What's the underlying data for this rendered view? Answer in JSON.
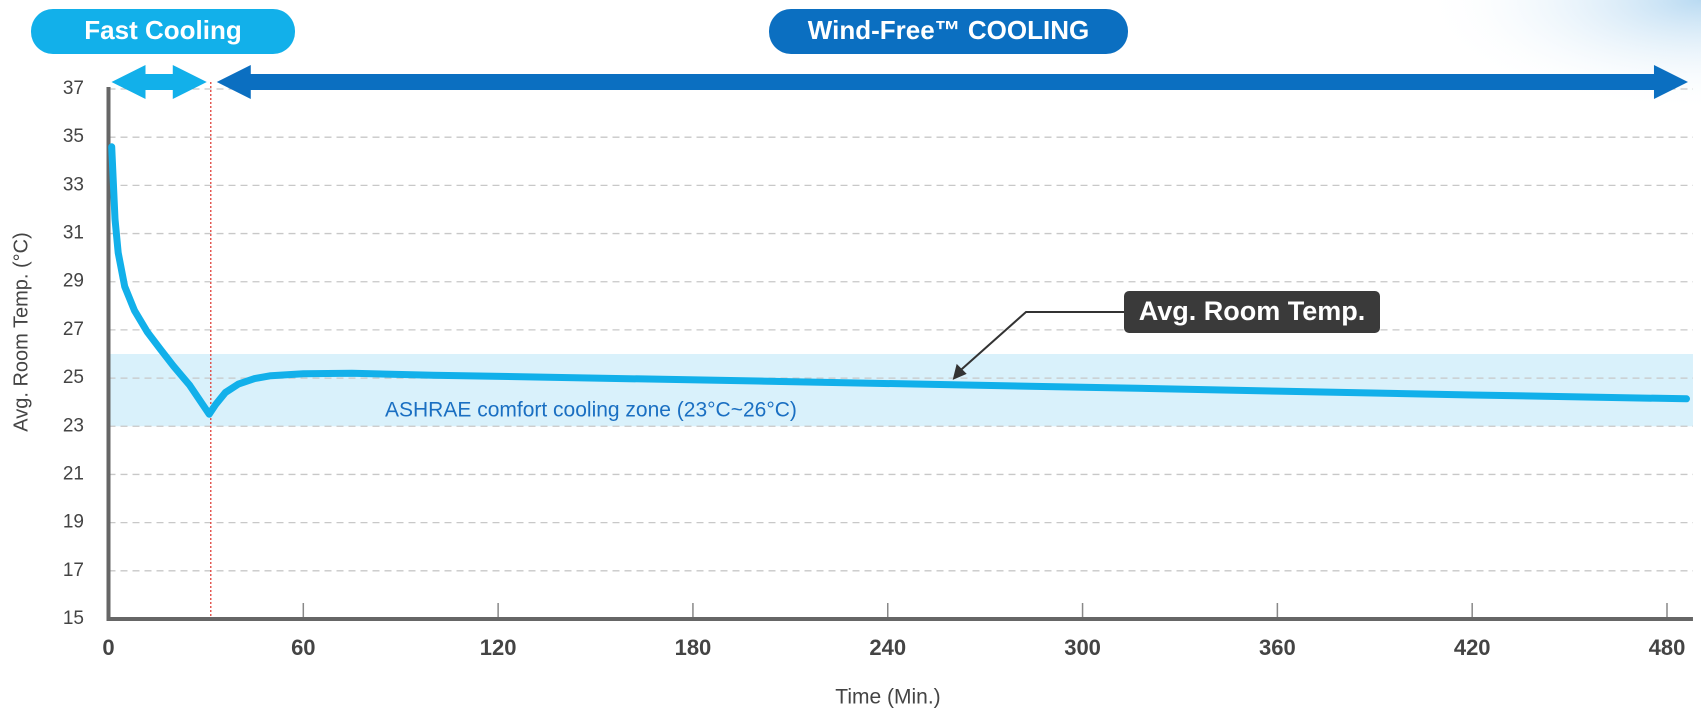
{
  "chart_data": {
    "type": "line",
    "x_label": "Time (Min.)",
    "y_label": "Avg. Room Temp.  (°C)",
    "xlim": [
      0,
      488
    ],
    "ylim": [
      15,
      37
    ],
    "xticks": [
      0,
      60,
      120,
      180,
      240,
      300,
      360,
      420,
      480
    ],
    "yticks": [
      15,
      17,
      19,
      21,
      23,
      25,
      27,
      29,
      31,
      33,
      35,
      37
    ],
    "grid": true,
    "phases": [
      {
        "label": "Fast Cooling",
        "range": [
          0,
          31.5
        ]
      },
      {
        "label": "Wind-Free™ COOLING",
        "range": [
          31.5,
          488
        ]
      }
    ],
    "band": {
      "label": "ASHRAE comfort cooling zone (23°C~26°C)",
      "range": [
        23,
        26
      ],
      "color": "#d9f1fb"
    },
    "callout_x": 260,
    "series": [
      {
        "name": "Avg. Room Temp.",
        "color": "#12b0ea",
        "x": [
          1,
          2,
          3,
          5,
          8,
          12,
          16,
          20,
          25,
          31,
          33,
          36,
          40,
          45,
          50,
          60,
          75,
          100,
          150,
          200,
          260,
          300,
          360,
          420,
          486
        ],
        "values": [
          34.6,
          31.6,
          30.2,
          28.8,
          27.8,
          26.9,
          26.2,
          25.5,
          24.7,
          23.5,
          23.9,
          24.4,
          24.75,
          24.98,
          25.1,
          25.18,
          25.2,
          25.12,
          25.0,
          24.88,
          24.72,
          24.62,
          24.46,
          24.3,
          24.14
        ]
      }
    ]
  }
}
